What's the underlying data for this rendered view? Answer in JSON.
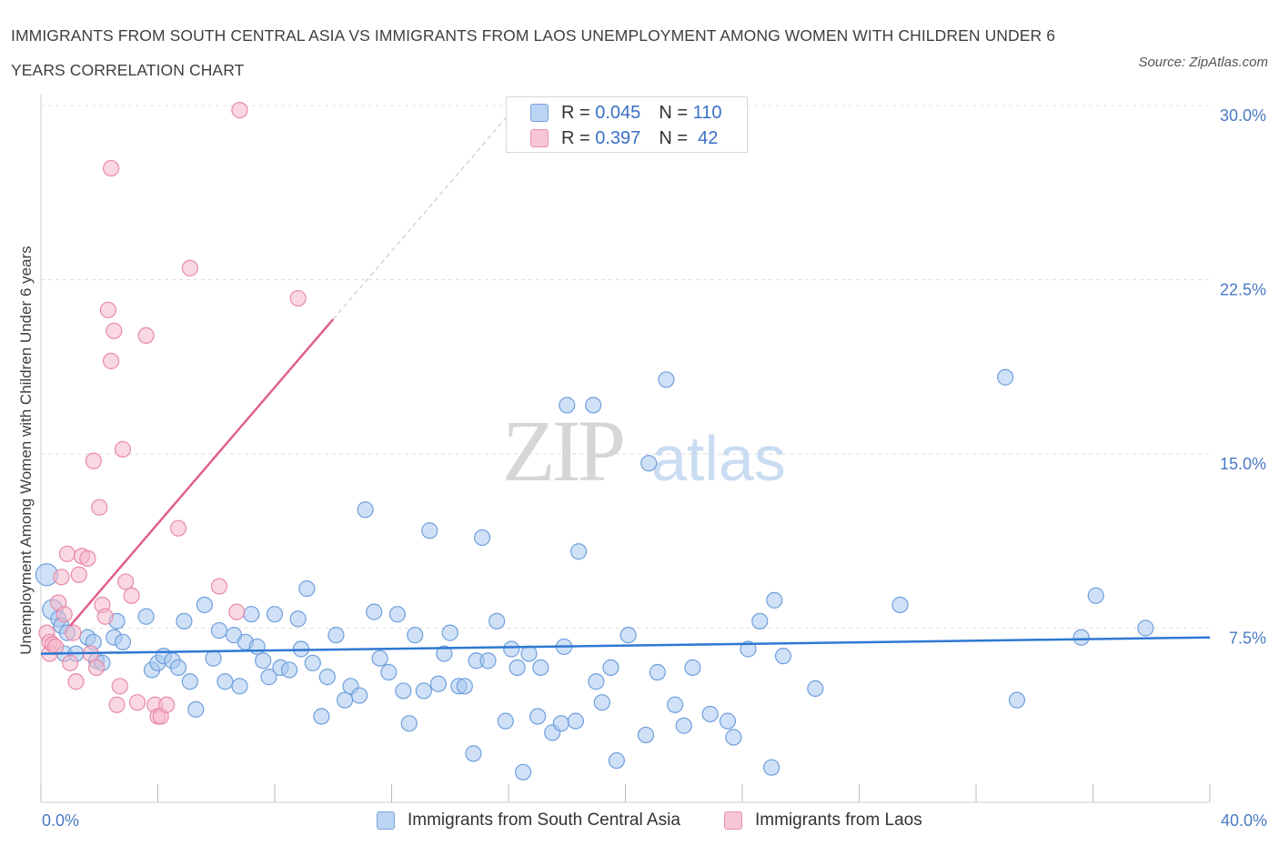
{
  "title": "IMMIGRANTS FROM SOUTH CENTRAL ASIA VS IMMIGRANTS FROM LAOS UNEMPLOYMENT AMONG WOMEN WITH CHILDREN UNDER 6 YEARS CORRELATION CHART",
  "source": "Source: ZipAtlas.com",
  "watermark": {
    "zip": "ZIP",
    "atlas": "atlas"
  },
  "colors": {
    "blue_fill": "#a9c8f0",
    "blue_stroke": "#6f9fdc",
    "blue_line": "#2e78d2",
    "pink_fill": "#f5b8cb",
    "pink_stroke": "#e88aa8",
    "pink_line": "#e0608a",
    "grid": "#dedede",
    "axis_text": "#4a79c4"
  },
  "legend": {
    "rows": [
      {
        "r_label": "R = ",
        "r_value": "0.045",
        "n_label": "N = ",
        "n_value": "110"
      },
      {
        "r_label": "R = ",
        "r_value": "0.397",
        "n_label": "N = ",
        "n_value": " 42"
      }
    ]
  },
  "chart_data": {
    "type": "scatter",
    "xlabel": "",
    "ylabel": "Unemployment Among Women with Children Under 6 years",
    "xlim": [
      0,
      40
    ],
    "ylim": [
      0,
      30
    ],
    "x_tick_labels": [
      "0.0%",
      "40.0%"
    ],
    "y_ticks": [
      7.5,
      15.0,
      22.5,
      30.0
    ],
    "y_tick_labels": [
      "7.5%",
      "15.0%",
      "22.5%",
      "30.0%"
    ],
    "grid": "horizontal dashed",
    "series": [
      {
        "name": "Immigrants from South Central Asia",
        "color": "blue",
        "trend": {
          "x": [
            0,
            40
          ],
          "y": [
            6.4,
            7.1
          ]
        },
        "points": [
          [
            0.2,
            9.8
          ],
          [
            0.4,
            8.3
          ],
          [
            0.6,
            7.9
          ],
          [
            0.7,
            7.6
          ],
          [
            0.9,
            7.3
          ],
          [
            0.8,
            6.4
          ],
          [
            1.2,
            6.4
          ],
          [
            1.6,
            7.1
          ],
          [
            1.8,
            6.9
          ],
          [
            1.9,
            6.1
          ],
          [
            2.1,
            6.0
          ],
          [
            2.5,
            7.1
          ],
          [
            2.6,
            7.8
          ],
          [
            2.8,
            6.9
          ],
          [
            3.6,
            8.0
          ],
          [
            3.8,
            5.7
          ],
          [
            4.0,
            6.0
          ],
          [
            4.2,
            6.3
          ],
          [
            4.5,
            6.1
          ],
          [
            4.7,
            5.8
          ],
          [
            4.9,
            7.8
          ],
          [
            5.1,
            5.2
          ],
          [
            5.3,
            4.0
          ],
          [
            5.6,
            8.5
          ],
          [
            5.9,
            6.2
          ],
          [
            6.1,
            7.4
          ],
          [
            6.3,
            5.2
          ],
          [
            6.6,
            7.2
          ],
          [
            6.8,
            5.0
          ],
          [
            7.0,
            6.9
          ],
          [
            7.2,
            8.1
          ],
          [
            7.4,
            6.7
          ],
          [
            7.6,
            6.1
          ],
          [
            7.8,
            5.4
          ],
          [
            8.0,
            8.1
          ],
          [
            8.2,
            5.8
          ],
          [
            8.5,
            5.7
          ],
          [
            8.8,
            7.9
          ],
          [
            8.9,
            6.6
          ],
          [
            9.1,
            9.2
          ],
          [
            9.3,
            6.0
          ],
          [
            9.6,
            3.7
          ],
          [
            9.8,
            5.4
          ],
          [
            10.1,
            7.2
          ],
          [
            10.4,
            4.4
          ],
          [
            10.6,
            5.0
          ],
          [
            10.9,
            4.6
          ],
          [
            11.1,
            12.6
          ],
          [
            11.4,
            8.2
          ],
          [
            11.6,
            6.2
          ],
          [
            11.9,
            5.6
          ],
          [
            12.2,
            8.1
          ],
          [
            12.4,
            4.8
          ],
          [
            12.6,
            3.4
          ],
          [
            12.8,
            7.2
          ],
          [
            13.1,
            4.8
          ],
          [
            13.3,
            11.7
          ],
          [
            13.6,
            5.1
          ],
          [
            13.8,
            6.4
          ],
          [
            14.0,
            7.3
          ],
          [
            14.3,
            5.0
          ],
          [
            14.5,
            5.0
          ],
          [
            14.8,
            2.1
          ],
          [
            14.9,
            6.1
          ],
          [
            15.1,
            11.4
          ],
          [
            15.3,
            6.1
          ],
          [
            15.6,
            7.8
          ],
          [
            15.9,
            3.5
          ],
          [
            16.1,
            6.6
          ],
          [
            16.3,
            5.8
          ],
          [
            16.5,
            1.3
          ],
          [
            16.7,
            6.4
          ],
          [
            17.0,
            3.7
          ],
          [
            17.1,
            5.8
          ],
          [
            17.5,
            3.0
          ],
          [
            17.8,
            3.4
          ],
          [
            17.9,
            6.7
          ],
          [
            18.0,
            17.1
          ],
          [
            18.3,
            3.5
          ],
          [
            18.4,
            10.8
          ],
          [
            18.9,
            17.1
          ],
          [
            19.0,
            5.2
          ],
          [
            19.2,
            4.3
          ],
          [
            19.5,
            5.8
          ],
          [
            19.7,
            1.8
          ],
          [
            20.1,
            7.2
          ],
          [
            20.7,
            2.9
          ],
          [
            20.8,
            14.6
          ],
          [
            21.1,
            5.6
          ],
          [
            21.4,
            18.2
          ],
          [
            21.7,
            4.2
          ],
          [
            22.0,
            3.3
          ],
          [
            22.3,
            5.8
          ],
          [
            22.9,
            3.8
          ],
          [
            23.5,
            3.5
          ],
          [
            23.7,
            2.8
          ],
          [
            24.2,
            6.6
          ],
          [
            24.6,
            7.8
          ],
          [
            25.0,
            1.5
          ],
          [
            25.1,
            8.7
          ],
          [
            25.4,
            6.3
          ],
          [
            26.5,
            4.9
          ],
          [
            29.4,
            8.5
          ],
          [
            33.0,
            18.3
          ],
          [
            33.4,
            4.4
          ],
          [
            35.6,
            7.1
          ],
          [
            36.1,
            8.9
          ],
          [
            37.8,
            7.5
          ]
        ]
      },
      {
        "name": "Immigrants from Laos",
        "color": "pink",
        "trend": {
          "x": [
            1.0,
            10.0
          ],
          "y": [
            7.6,
            20.8
          ]
        },
        "trend_dashed": {
          "x": [
            10.0,
            16.0
          ],
          "y": [
            20.8,
            29.6
          ]
        },
        "points": [
          [
            0.2,
            7.3
          ],
          [
            0.3,
            6.9
          ],
          [
            0.3,
            6.4
          ],
          [
            0.4,
            6.8
          ],
          [
            0.5,
            6.7
          ],
          [
            0.6,
            8.6
          ],
          [
            0.7,
            9.7
          ],
          [
            0.8,
            8.1
          ],
          [
            0.9,
            10.7
          ],
          [
            1.0,
            6.0
          ],
          [
            1.1,
            7.3
          ],
          [
            1.2,
            5.2
          ],
          [
            1.3,
            9.8
          ],
          [
            1.4,
            10.6
          ],
          [
            1.6,
            10.5
          ],
          [
            1.7,
            6.4
          ],
          [
            1.8,
            14.7
          ],
          [
            1.9,
            5.8
          ],
          [
            2.0,
            12.7
          ],
          [
            2.1,
            8.5
          ],
          [
            2.2,
            8.0
          ],
          [
            2.3,
            21.2
          ],
          [
            2.4,
            19.0
          ],
          [
            2.4,
            27.3
          ],
          [
            2.5,
            20.3
          ],
          [
            2.6,
            4.2
          ],
          [
            2.7,
            5.0
          ],
          [
            2.8,
            15.2
          ],
          [
            2.9,
            9.5
          ],
          [
            3.1,
            8.9
          ],
          [
            3.3,
            4.3
          ],
          [
            3.6,
            20.1
          ],
          [
            3.9,
            4.2
          ],
          [
            4.0,
            3.7
          ],
          [
            4.1,
            3.7
          ],
          [
            4.3,
            4.2
          ],
          [
            4.7,
            11.8
          ],
          [
            5.1,
            23.0
          ],
          [
            6.1,
            9.3
          ],
          [
            6.7,
            8.2
          ],
          [
            6.8,
            29.8
          ],
          [
            8.8,
            21.7
          ]
        ]
      }
    ]
  },
  "bottom_legend": [
    {
      "label": "Immigrants from South Central Asia"
    },
    {
      "label": "Immigrants from Laos"
    }
  ]
}
